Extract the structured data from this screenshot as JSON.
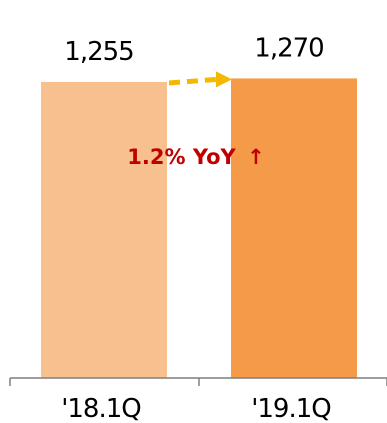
{
  "chart_data": {
    "type": "bar",
    "categories": [
      "'18.1Q",
      "'19.1Q"
    ],
    "values": [
      1255,
      1270
    ],
    "value_labels": [
      "1,255",
      "1,270"
    ],
    "ylim": [
      0,
      1350
    ],
    "grid": false,
    "annotation": {
      "text": "1.2% YoY",
      "arrow": "↑"
    },
    "colors": {
      "bars": [
        "#f8c08f",
        "#f59a48"
      ],
      "growth_arrow": "#f5b800",
      "annotation": "#c00000",
      "axis": "#7f7f7f"
    }
  }
}
